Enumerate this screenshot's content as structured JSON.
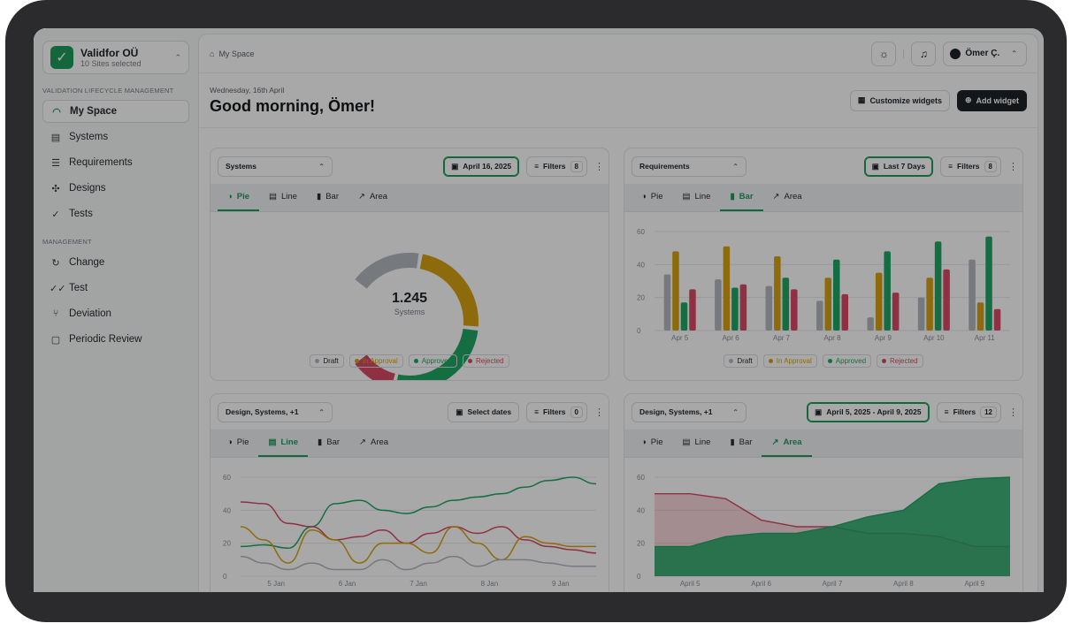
{
  "org": {
    "name": "Validfor OÜ",
    "sub": "10 Sites selected"
  },
  "sidebar": {
    "section1": "VALIDATION LIFECYCLE MANAGEMENT",
    "items1": [
      {
        "label": "My Space",
        "icon": "gauge-icon"
      },
      {
        "label": "Systems",
        "icon": "server-icon"
      },
      {
        "label": "Requirements",
        "icon": "list-check-icon"
      },
      {
        "label": "Designs",
        "icon": "puzzle-icon"
      },
      {
        "label": "Tests",
        "icon": "check-circle-icon"
      }
    ],
    "section2": "MANAGEMENT",
    "items2": [
      {
        "label": "Change",
        "icon": "refresh-icon"
      },
      {
        "label": "Test",
        "icon": "double-check-icon"
      },
      {
        "label": "Deviation",
        "icon": "branch-icon"
      },
      {
        "label": "Periodic Review",
        "icon": "review-icon"
      }
    ]
  },
  "header": {
    "breadcrumb": "My Space",
    "user": "Ömer Ç."
  },
  "greeting": {
    "date": "Wednesday, 16th April",
    "title": "Good morning, Ömer!",
    "customize": "Customize widgets",
    "add": "Add widget"
  },
  "tabs": [
    "Pie",
    "Line",
    "Bar",
    "Area"
  ],
  "colors": {
    "draft": "#b4b8be",
    "approval": "#d6a313",
    "approved": "#1fa764",
    "rejected": "#d94a66",
    "accent": "#1f9c5b"
  },
  "widgets": [
    {
      "select": "Systems",
      "date": "April 16, 2025",
      "date_on": true,
      "filters": "Filters",
      "count": "8",
      "tab": 0
    },
    {
      "select": "Requirements",
      "date": "Last 7 Days",
      "date_on": true,
      "filters": "Filters",
      "count": "8",
      "tab": 2
    },
    {
      "select": "Design, Systems, +1",
      "date": "Select dates",
      "date_on": false,
      "filters": "Filters",
      "count": "0",
      "tab": 1
    },
    {
      "select": "Design, Systems, +1",
      "date": "April 5, 2025 - April 9, 2025",
      "date_on": true,
      "filters": "Filters",
      "count": "12",
      "tab": 3
    }
  ],
  "legend": [
    "Draft",
    "In Approval",
    "Approved",
    "Rejected"
  ],
  "chart_data": [
    {
      "type": "pie",
      "variant": "gauge",
      "center_value": "1.245",
      "center_label": "Systems",
      "categories": [
        "Draft",
        "In Approval",
        "Approved",
        "Rejected"
      ],
      "values": [
        22,
        30,
        34,
        14
      ]
    },
    {
      "type": "bar",
      "categories": [
        "Apr 5",
        "Apr 6",
        "Apr 7",
        "Apr 8",
        "Apr 9",
        "Apr 10",
        "Apr 11"
      ],
      "ylim": [
        0,
        60
      ],
      "yticks": [
        0,
        20,
        40,
        60
      ],
      "series": [
        {
          "name": "Draft",
          "values": [
            34,
            31,
            27,
            18,
            8,
            20,
            43
          ]
        },
        {
          "name": "In Approval",
          "values": [
            48,
            51,
            45,
            32,
            35,
            32,
            17
          ]
        },
        {
          "name": "Approved",
          "values": [
            17,
            26,
            32,
            43,
            48,
            54,
            57
          ]
        },
        {
          "name": "Rejected",
          "values": [
            25,
            28,
            25,
            22,
            23,
            37,
            13
          ]
        }
      ]
    },
    {
      "type": "line",
      "categories": [
        "5 Jan",
        "6 Jan",
        "7 Jan",
        "8 Jan",
        "9 Jan"
      ],
      "ylim": [
        0,
        60
      ],
      "yticks": [
        0,
        20,
        40,
        60
      ],
      "x": [
        0,
        0.33,
        0.67,
        1,
        1.33,
        1.67,
        2,
        2.33,
        2.67,
        3,
        3.33,
        3.67,
        4,
        4.33,
        4.67,
        5
      ],
      "series": [
        {
          "name": "Approved",
          "values": [
            18,
            19,
            17,
            30,
            44,
            46,
            40,
            38,
            42,
            46,
            48,
            50,
            54,
            58,
            60,
            56
          ]
        },
        {
          "name": "Rejected",
          "values": [
            45,
            44,
            32,
            30,
            22,
            24,
            28,
            20,
            26,
            30,
            26,
            30,
            22,
            18,
            16,
            14
          ]
        },
        {
          "name": "In Approval",
          "values": [
            30,
            22,
            8,
            28,
            22,
            8,
            20,
            20,
            14,
            30,
            20,
            10,
            24,
            20,
            18,
            18
          ]
        },
        {
          "name": "Draft",
          "values": [
            12,
            8,
            4,
            8,
            4,
            4,
            10,
            4,
            8,
            12,
            6,
            10,
            10,
            8,
            6,
            6
          ]
        }
      ]
    },
    {
      "type": "area",
      "categories": [
        "April 5",
        "April 6",
        "April 7",
        "April 8",
        "April 9"
      ],
      "ylim": [
        0,
        60
      ],
      "yticks": [
        0,
        20,
        40,
        60
      ],
      "x": [
        0,
        0.5,
        1,
        1.5,
        2,
        2.5,
        3,
        3.5,
        4,
        4.5,
        5
      ],
      "series": [
        {
          "name": "Rejected",
          "values": [
            50,
            50,
            47,
            34,
            30,
            30,
            26,
            26,
            24,
            18,
            18
          ]
        },
        {
          "name": "Approved",
          "values": [
            18,
            18,
            24,
            26,
            26,
            30,
            36,
            40,
            56,
            59,
            60
          ]
        }
      ]
    }
  ]
}
